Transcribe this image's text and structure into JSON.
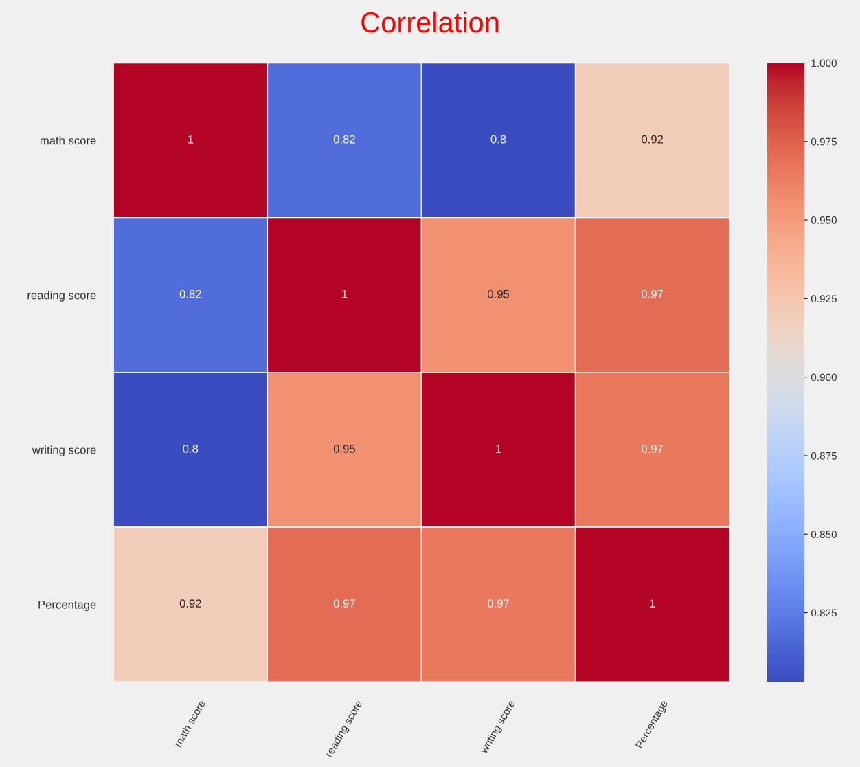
{
  "chart_data": {
    "type": "heatmap",
    "title": "Correlation",
    "categories": [
      "math score",
      "reading score",
      "writing score",
      "Percentage"
    ],
    "y_categories": [
      "math score",
      "reading score",
      "writing score",
      "Percentage"
    ],
    "cells": [
      [
        1.0,
        0.818,
        0.803,
        0.92
      ],
      [
        0.818,
        1.0,
        0.955,
        0.97
      ],
      [
        0.803,
        0.955,
        1.0,
        0.966
      ],
      [
        0.92,
        0.97,
        0.966,
        1.0
      ]
    ],
    "cell_labels": [
      [
        "1",
        "0.82",
        "0.8",
        "0.92"
      ],
      [
        "0.82",
        "1",
        "0.95",
        "0.97"
      ],
      [
        "0.8",
        "0.95",
        "1",
        "0.97"
      ],
      [
        "0.92",
        "0.97",
        "0.97",
        "1"
      ]
    ],
    "clim": [
      0.803,
      1.0
    ],
    "cticks": [
      {
        "value": 0.825,
        "label": "0.825"
      },
      {
        "value": 0.85,
        "label": "0.850"
      },
      {
        "value": 0.875,
        "label": "0.875"
      },
      {
        "value": 0.9,
        "label": "0.900"
      },
      {
        "value": 0.925,
        "label": "0.925"
      },
      {
        "value": 0.95,
        "label": "0.950"
      },
      {
        "value": 0.975,
        "label": "0.975"
      },
      {
        "value": 1.0,
        "label": "1.000"
      }
    ]
  }
}
